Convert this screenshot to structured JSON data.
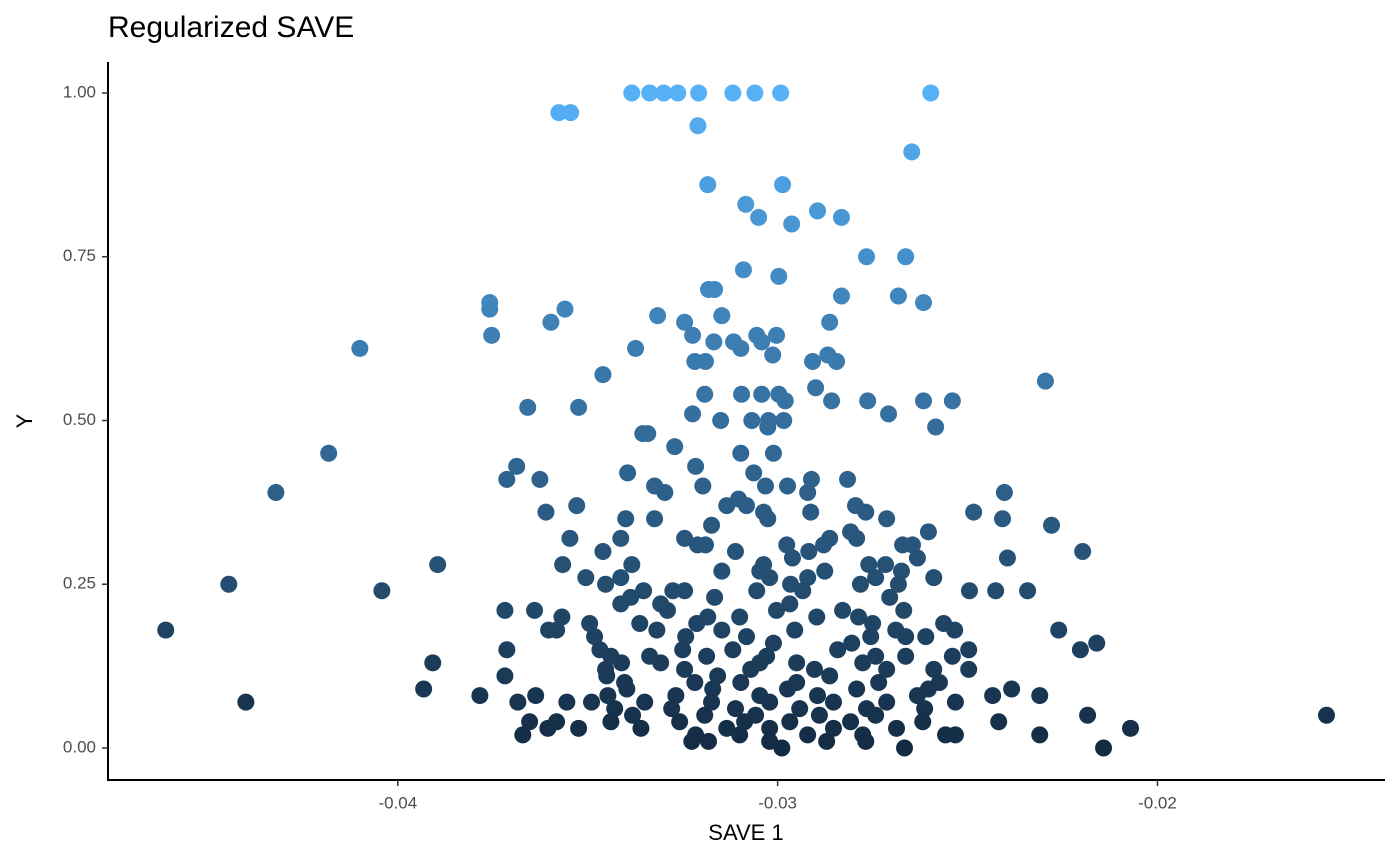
{
  "chart_data": {
    "type": "scatter",
    "title": "Regularized SAVE",
    "x_label": "SAVE 1",
    "y_label": "Y",
    "color_scale": [
      "#132B43",
      "#56B1F7"
    ],
    "xlim": [
      -0.04763,
      -0.01401
    ],
    "ylim": [
      -0.0489,
      1.0473
    ],
    "xticks": [
      -0.04,
      -0.03,
      -0.02
    ],
    "yticks": [
      {
        "value": 0,
        "label": "0.00"
      },
      0.25,
      {
        "value": 0.5,
        "label": "0.50"
      },
      0.75,
      {
        "value": 1,
        "label": "1.00"
      }
    ],
    "grid": false,
    "x": [
      -0.03384,
      -0.03337,
      -0.033,
      -0.03263,
      -0.03208,
      -0.03118,
      -0.0306,
      -0.02992,
      -0.02597,
      -0.03576,
      -0.03545,
      -0.0321,
      -0.02647,
      -0.03184,
      -0.02987,
      -0.03084,
      -0.0305,
      -0.02963,
      -0.02895,
      -0.02832,
      -0.02766,
      -0.02663,
      -0.0309,
      -0.02997,
      -0.03182,
      -0.03166,
      -0.02832,
      -0.02682,
      -0.03758,
      -0.02616,
      -0.03758,
      -0.0356,
      -0.03316,
      -0.03147,
      -0.03597,
      -0.03245,
      -0.02863,
      -0.03753,
      -0.03224,
      -0.03055,
      -0.03003,
      -0.03168,
      -0.03116,
      -0.03042,
      -0.041,
      -0.03374,
      -0.03097,
      -0.03013,
      -0.02868,
      -0.03218,
      -0.0319,
      -0.02908,
      -0.02845,
      -0.0346,
      -0.02295,
      -0.029,
      -0.03192,
      -0.03095,
      -0.03042,
      -0.02997,
      -0.0298,
      -0.02858,
      -0.02763,
      -0.02616,
      -0.0254,
      -0.03658,
      -0.03524,
      -0.03224,
      -0.02708,
      -0.0315,
      -0.03068,
      -0.03024,
      -0.02984,
      -0.03026,
      -0.02584,
      -0.03355,
      -0.03342,
      -0.03271,
      -0.04182,
      -0.03097,
      -0.03011,
      -0.03687,
      -0.03216,
      -0.03395,
      -0.03063,
      -0.03713,
      -0.03626,
      -0.02911,
      -0.02816,
      -0.03324,
      -0.03197,
      -0.03032,
      -0.02974,
      -0.04321,
      -0.03297,
      -0.02921,
      -0.02403,
      -0.03103,
      -0.03529,
      -0.03134,
      -0.03082,
      -0.02795,
      -0.0361,
      -0.03037,
      -0.02913,
      -0.02768,
      -0.02484,
      -0.034,
      -0.03324,
      -0.03026,
      -0.02713,
      -0.02408,
      -0.03174,
      -0.02279,
      -0.02808,
      -0.02603,
      -0.03547,
      -0.03413,
      -0.03245,
      -0.02863,
      -0.02792,
      -0.03211,
      -0.0319,
      -0.02976,
      -0.02879,
      -0.02671,
      -0.02645,
      -0.0346,
      -0.03111,
      -0.02918,
      -0.02197,
      -0.02961,
      -0.02632,
      -0.02395,
      -0.03895,
      -0.03566,
      -0.03384,
      -0.03037,
      -0.0276,
      -0.02716,
      -0.03147,
      -0.03047,
      -0.02876,
      -0.02674,
      -0.03505,
      -0.03413,
      -0.03021,
      -0.02921,
      -0.02742,
      -0.02589,
      -0.04445,
      -0.03453,
      -0.02966,
      -0.02782,
      -0.02682,
      -0.04042,
      -0.03353,
      -0.03276,
      -0.03245,
      -0.03055,
      -0.02934,
      -0.02495,
      -0.02426,
      -0.02342,
      -0.03387,
      -0.03166,
      -0.02705,
      -0.03413,
      -0.03308,
      -0.02968,
      -0.03718,
      -0.0364,
      -0.0329,
      -0.03003,
      -0.02829,
      -0.02668,
      -0.03568,
      -0.03184,
      -0.031,
      -0.02897,
      -0.02787,
      -0.03495,
      -0.03363,
      -0.03213,
      -0.0275,
      -0.02563,
      -0.04611,
      -0.03603,
      -0.03582,
      -0.03318,
      -0.03147,
      -0.02955,
      -0.02689,
      -0.02534,
      -0.0226,
      -0.03482,
      -0.03242,
      -0.03082,
      -0.02755,
      -0.02663,
      -0.0261,
      -0.03011,
      -0.02805,
      -0.0216,
      -0.03713,
      -0.03468,
      -0.0325,
      -0.03118,
      -0.02842,
      -0.02497,
      -0.02203,
      -0.03439,
      -0.03337,
      -0.03187,
      -0.03029,
      -0.02742,
      -0.02663,
      -0.0254,
      -0.03908,
      -0.03411,
      -0.03308,
      -0.03047,
      -0.0295,
      -0.02776,
      -0.03453,
      -0.03245,
      -0.03071,
      -0.02903,
      -0.02713,
      -0.02589,
      -0.02497,
      -0.03718,
      -0.0345,
      -0.03158,
      -0.02863,
      -0.03403,
      -0.03218,
      -0.03097,
      -0.0295,
      -0.02734,
      -0.02574,
      -0.03932,
      -0.03397,
      -0.03171,
      -0.02974,
      -0.02792,
      -0.02603,
      -0.02384,
      -0.03784,
      -0.03637,
      -0.03447,
      -0.03268,
      -0.03047,
      -0.02895,
      -0.02632,
      -0.02434,
      -0.0231,
      -0.044,
      -0.03684,
      -0.03555,
      -0.0349,
      -0.0335,
      -0.03174,
      -0.03021,
      -0.02853,
      -0.02713,
      -0.02532,
      -0.03429,
      -0.03279,
      -0.03111,
      -0.02942,
      -0.02766,
      -0.02613,
      -0.03382,
      -0.03192,
      -0.03058,
      -0.0289,
      -0.02742,
      -0.02184,
      -0.01555,
      -0.03653,
      -0.03582,
      -0.03439,
      -0.03258,
      -0.03087,
      -0.02968,
      -0.02808,
      -0.02618,
      -0.02418,
      -0.03605,
      -0.03524,
      -0.0336,
      -0.03134,
      -0.03021,
      -0.02853,
      -0.02687,
      -0.02071,
      -0.03671,
      -0.03216,
      -0.031,
      -0.02921,
      -0.02776,
      -0.02558,
      -0.02532,
      -0.0231,
      -0.03226,
      -0.03182,
      -0.03021,
      -0.02871,
      -0.02768,
      -0.02989,
      -0.02666,
      -0.02142
    ],
    "values": [
      1,
      1,
      1,
      1,
      1,
      1,
      1,
      1,
      1,
      0.97,
      0.97,
      0.95,
      0.91,
      0.86,
      0.86,
      0.83,
      0.81,
      0.8,
      0.82,
      0.81,
      0.75,
      0.75,
      0.73,
      0.72,
      0.7,
      0.7,
      0.69,
      0.69,
      0.68,
      0.68,
      0.67,
      0.67,
      0.66,
      0.66,
      0.65,
      0.65,
      0.65,
      0.63,
      0.63,
      0.63,
      0.63,
      0.62,
      0.62,
      0.62,
      0.61,
      0.61,
      0.61,
      0.6,
      0.6,
      0.59,
      0.59,
      0.59,
      0.59,
      0.57,
      0.56,
      0.55,
      0.54,
      0.54,
      0.54,
      0.54,
      0.53,
      0.53,
      0.53,
      0.53,
      0.53,
      0.52,
      0.52,
      0.51,
      0.51,
      0.5,
      0.5,
      0.5,
      0.5,
      0.49,
      0.49,
      0.48,
      0.48,
      0.46,
      0.45,
      0.45,
      0.45,
      0.43,
      0.43,
      0.42,
      0.42,
      0.41,
      0.41,
      0.41,
      0.41,
      0.4,
      0.4,
      0.4,
      0.4,
      0.39,
      0.39,
      0.39,
      0.39,
      0.38,
      0.37,
      0.37,
      0.37,
      0.37,
      0.36,
      0.36,
      0.36,
      0.36,
      0.36,
      0.35,
      0.35,
      0.35,
      0.35,
      0.35,
      0.34,
      0.34,
      0.33,
      0.33,
      0.32,
      0.32,
      0.32,
      0.32,
      0.32,
      0.31,
      0.31,
      0.31,
      0.31,
      0.31,
      0.31,
      0.3,
      0.3,
      0.3,
      0.3,
      0.29,
      0.29,
      0.29,
      0.28,
      0.28,
      0.28,
      0.28,
      0.28,
      0.28,
      0.27,
      0.27,
      0.27,
      0.27,
      0.26,
      0.26,
      0.26,
      0.26,
      0.26,
      0.26,
      0.25,
      0.25,
      0.25,
      0.25,
      0.25,
      0.24,
      0.24,
      0.24,
      0.24,
      0.24,
      0.24,
      0.24,
      0.24,
      0.24,
      0.23,
      0.23,
      0.23,
      0.22,
      0.22,
      0.22,
      0.21,
      0.21,
      0.21,
      0.21,
      0.21,
      0.21,
      0.2,
      0.2,
      0.2,
      0.2,
      0.2,
      0.19,
      0.19,
      0.19,
      0.19,
      0.19,
      0.18,
      0.18,
      0.18,
      0.18,
      0.18,
      0.18,
      0.18,
      0.18,
      0.18,
      0.17,
      0.17,
      0.17,
      0.17,
      0.17,
      0.17,
      0.16,
      0.16,
      0.16,
      0.15,
      0.15,
      0.15,
      0.15,
      0.15,
      0.15,
      0.15,
      0.14,
      0.14,
      0.14,
      0.14,
      0.14,
      0.14,
      0.14,
      0.13,
      0.13,
      0.13,
      0.13,
      0.13,
      0.13,
      0.12,
      0.12,
      0.12,
      0.12,
      0.12,
      0.12,
      0.12,
      0.11,
      0.11,
      0.11,
      0.11,
      0.1,
      0.1,
      0.1,
      0.1,
      0.1,
      0.1,
      0.09,
      0.09,
      0.09,
      0.09,
      0.09,
      0.09,
      0.09,
      0.08,
      0.08,
      0.08,
      0.08,
      0.08,
      0.08,
      0.08,
      0.08,
      0.08,
      0.07,
      0.07,
      0.07,
      0.07,
      0.07,
      0.07,
      0.07,
      0.07,
      0.07,
      0.07,
      0.06,
      0.06,
      0.06,
      0.06,
      0.06,
      0.06,
      0.05,
      0.05,
      0.05,
      0.05,
      0.05,
      0.05,
      0.05,
      0.04,
      0.04,
      0.04,
      0.04,
      0.04,
      0.04,
      0.04,
      0.04,
      0.04,
      0.03,
      0.03,
      0.03,
      0.03,
      0.03,
      0.03,
      0.03,
      0.03,
      0.02,
      0.02,
      0.02,
      0.02,
      0.02,
      0.02,
      0.02,
      0.02,
      0.01,
      0.01,
      0.01,
      0.01,
      0.01,
      0,
      0,
      0
    ]
  }
}
